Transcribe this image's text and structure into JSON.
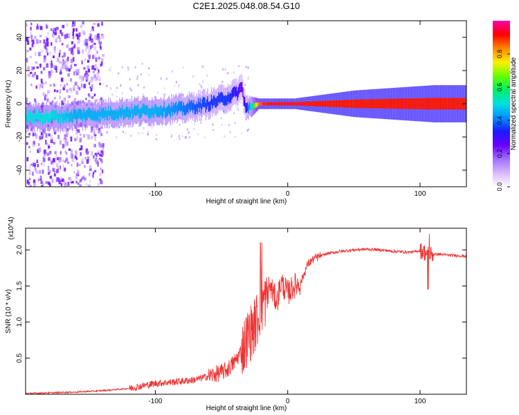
{
  "title": "C2E1.2025.048.08.54.G10",
  "colors": {
    "snr_line": "#ee3333",
    "axis": "#000000",
    "plot_bg": "#ffffff",
    "colorscale": [
      "#ffffff",
      "#d7b8ff",
      "#a070ff",
      "#6a00ff",
      "#1a1aff",
      "#0090ff",
      "#00e0e0",
      "#00ee66",
      "#66ff00",
      "#ffee00",
      "#ff8800",
      "#ff0000",
      "#ff00aa"
    ]
  },
  "chart_data": [
    {
      "type": "heatmap",
      "xlabel": "Height of straight line (km)",
      "ylabel": "Frequency (Hz)",
      "xlim": [
        -198,
        135
      ],
      "ylim": [
        -50,
        50
      ],
      "xticks": [
        -100,
        0,
        100
      ],
      "yticks": [
        -40,
        -20,
        0,
        20,
        40
      ],
      "colorbar": {
        "label": "Normalized spectral amplitude",
        "range": [
          0,
          1
        ],
        "ticks": [
          "0.0",
          "0.2",
          "0.4",
          "0.6",
          "0.8"
        ],
        "tick_values": [
          0.0,
          0.2,
          0.4,
          0.6,
          0.8
        ]
      },
      "ridge": {
        "x": [
          -198,
          -180,
          -160,
          -140,
          -120,
          -100,
          -80,
          -60,
          -45,
          -38,
          -35,
          -32,
          -28,
          -22,
          -15,
          -5,
          5,
          20,
          50,
          80,
          110,
          135
        ],
        "center_hz": [
          -8,
          -8,
          -7,
          -6,
          -5,
          -4,
          -3,
          0,
          4,
          7,
          10,
          -3,
          -2,
          0,
          0,
          0,
          0,
          0,
          0,
          0,
          0,
          0
        ],
        "amplitude": [
          0.5,
          0.5,
          0.45,
          0.45,
          0.45,
          0.45,
          0.4,
          0.35,
          0.35,
          0.3,
          0.25,
          0.3,
          0.5,
          0.85,
          0.9,
          0.9,
          0.9,
          0.9,
          0.9,
          0.9,
          0.9,
          0.9
        ],
        "width_hz": [
          3,
          3,
          3,
          3,
          3,
          3,
          3,
          3,
          3,
          3,
          3,
          3,
          2,
          1,
          1,
          1,
          1,
          1.5,
          2.5,
          3,
          3.5,
          3.5
        ]
      },
      "noise_region_x": [
        -198,
        -140
      ]
    },
    {
      "type": "line",
      "xlabel": "Height of straight line (km)",
      "ylabel": "SNR (10 * v/v)",
      "scale_label": "(x10^4)",
      "xlim": [
        -198,
        135
      ],
      "ylim": [
        0,
        2.3
      ],
      "xticks": [
        -100,
        0,
        100
      ],
      "yticks": [
        0.5,
        1.0,
        1.5,
        2.0
      ],
      "ytick_labels": [
        "0.5",
        "1.0",
        "1.5",
        "2.0"
      ],
      "series": [
        {
          "name": "SNR",
          "x": [
            -198,
            -180,
            -160,
            -140,
            -120,
            -100,
            -80,
            -70,
            -60,
            -50,
            -45,
            -40,
            -35,
            -30,
            -25,
            -22,
            -20,
            -18,
            -16,
            -14,
            -12,
            -10,
            -8,
            -5,
            0,
            5,
            10,
            15,
            20,
            30,
            40,
            50,
            60,
            70,
            80,
            90,
            95,
            100,
            103,
            105,
            108,
            110,
            115,
            120,
            130,
            135
          ],
          "y": [
            0.01,
            0.02,
            0.03,
            0.05,
            0.08,
            0.15,
            0.18,
            0.2,
            0.25,
            0.3,
            0.35,
            0.45,
            0.6,
            0.8,
            0.95,
            1.1,
            1.2,
            1.3,
            1.3,
            1.5,
            1.45,
            1.35,
            1.3,
            1.55,
            1.4,
            1.5,
            1.55,
            1.8,
            1.88,
            1.95,
            1.98,
            2.0,
            2.01,
            2.0,
            1.98,
            1.97,
            1.97,
            1.99,
            1.97,
            1.95,
            1.94,
            1.94,
            1.94,
            1.93,
            1.92,
            1.91
          ]
        }
      ]
    }
  ]
}
